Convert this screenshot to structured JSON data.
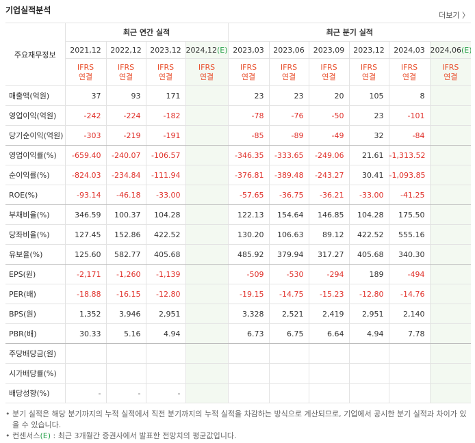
{
  "header": {
    "title": "기업실적분석",
    "more": "더보기 〉"
  },
  "table": {
    "corner": "주요재무정보",
    "groups": [
      {
        "label": "최근 연간 실적",
        "span": 4
      },
      {
        "label": "최근 분기 실적",
        "span": 6
      }
    ],
    "columns": [
      {
        "date": "2021,12",
        "basis": [
          "IFRS",
          "연결"
        ]
      },
      {
        "date": "2022,12",
        "basis": [
          "IFRS",
          "연결"
        ]
      },
      {
        "date": "2023,12",
        "basis": [
          "IFRS",
          "연결"
        ]
      },
      {
        "date": "2024,12",
        "mark": "(E)",
        "basis": [
          "IFRS",
          "연결"
        ]
      },
      {
        "date": "2023,03",
        "basis": [
          "IFRS",
          "연결"
        ]
      },
      {
        "date": "2023,06",
        "basis": [
          "IFRS",
          "연결"
        ]
      },
      {
        "date": "2023,09",
        "basis": [
          "IFRS",
          "연결"
        ]
      },
      {
        "date": "2023,12",
        "basis": [
          "IFRS",
          "연결"
        ]
      },
      {
        "date": "2024,03",
        "basis": [
          "IFRS",
          "연결"
        ]
      },
      {
        "date": "2024,06",
        "mark": "(E)",
        "basis": [
          "IFRS",
          "연결"
        ]
      }
    ],
    "rows": [
      {
        "label": "매출액(억원)",
        "values": [
          "37",
          "93",
          "171",
          null,
          "23",
          "23",
          "20",
          "105",
          "8",
          null
        ]
      },
      {
        "label": "영업이익(억원)",
        "values": [
          "-242",
          "-224",
          "-182",
          null,
          "-78",
          "-76",
          "-50",
          "23",
          "-101",
          null
        ]
      },
      {
        "label": "당기순이익(억원)",
        "values": [
          "-303",
          "-219",
          "-191",
          null,
          "-85",
          "-89",
          "-49",
          "32",
          "-84",
          null
        ]
      },
      {
        "label": "영업이익률(%)",
        "values": [
          "-659.40",
          "-240.07",
          "-106.57",
          null,
          "-346.35",
          "-333.65",
          "-249.06",
          "21.61",
          "-1,313.52",
          null
        ]
      },
      {
        "label": "순이익률(%)",
        "values": [
          "-824.03",
          "-234.84",
          "-111.94",
          null,
          "-376.81",
          "-389.48",
          "-243.27",
          "30.41",
          "-1,093.85",
          null
        ]
      },
      {
        "label": "ROE(%)",
        "values": [
          "-93.14",
          "-46.18",
          "-33.00",
          null,
          "-57.65",
          "-36.75",
          "-36.21",
          "-33.00",
          "-41.25",
          null
        ]
      },
      {
        "label": "부채비율(%)",
        "values": [
          "346.59",
          "100.37",
          "104.28",
          null,
          "122.13",
          "154.64",
          "146.85",
          "104.28",
          "175.50",
          null
        ]
      },
      {
        "label": "당좌비율(%)",
        "values": [
          "127.45",
          "152.86",
          "422.52",
          null,
          "130.20",
          "106.63",
          "89.12",
          "422.52",
          "555.16",
          null
        ]
      },
      {
        "label": "유보율(%)",
        "values": [
          "125.60",
          "582.77",
          "405.68",
          null,
          "485.92",
          "379.94",
          "317.27",
          "405.68",
          "340.30",
          null
        ]
      },
      {
        "label": "EPS(원)",
        "values": [
          "-2,171",
          "-1,260",
          "-1,139",
          null,
          "-509",
          "-530",
          "-294",
          "189",
          "-494",
          null
        ]
      },
      {
        "label": "PER(배)",
        "values": [
          "-18.88",
          "-16.15",
          "-12.80",
          null,
          "-19.15",
          "-14.75",
          "-15.23",
          "-12.80",
          "-14.76",
          null
        ]
      },
      {
        "label": "BPS(원)",
        "values": [
          "1,352",
          "3,946",
          "2,951",
          null,
          "3,328",
          "2,521",
          "2,419",
          "2,951",
          "2,140",
          null
        ]
      },
      {
        "label": "PBR(배)",
        "values": [
          "30.33",
          "5.16",
          "4.94",
          null,
          "6.73",
          "6.75",
          "6.64",
          "4.94",
          "7.78",
          null
        ]
      },
      {
        "label": "주당배당금(원)",
        "values": [
          null,
          null,
          null,
          null,
          null,
          null,
          null,
          null,
          null,
          null
        ]
      },
      {
        "label": "시가배당률(%)",
        "values": [
          null,
          null,
          null,
          null,
          null,
          null,
          null,
          null,
          null,
          null
        ]
      },
      {
        "label": "배당성향(%)",
        "values": [
          "-",
          "-",
          "-",
          null,
          null,
          null,
          null,
          null,
          null,
          null
        ]
      }
    ]
  },
  "notes": {
    "note1": "분기 실적은 해당 분기까지의 누적 실적에서 직전 분기까지의 누적 실적을 차감하는 방식으로 계산되므로, 기업에서 공시한 분기 실적과 차이가 있을 수 있습니다.",
    "note2": {
      "prefix": "컨센서스",
      "mark": "(E)",
      "text": " : 최근 3개월간 증권사에서 발표한 전망치의 평균값입니다."
    }
  }
}
